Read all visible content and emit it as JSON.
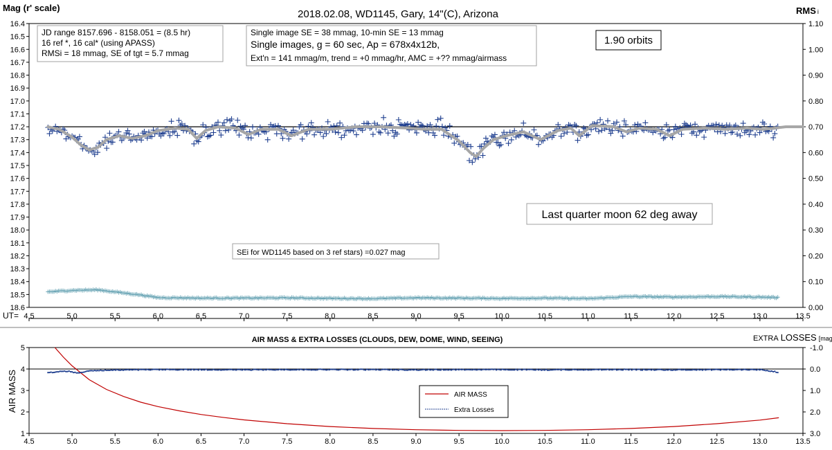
{
  "chart_data": [
    {
      "type": "scatter",
      "title": "2018.02.08,  WD1145, Gary, 14\"(C), Arizona",
      "ylabel": "Mag (r' scale)",
      "y2label": "RMS",
      "y2label_suffix": "i",
      "xlabel": "UT=",
      "xlim": [
        4.5,
        13.5
      ],
      "ylim": [
        16.4,
        18.6
      ],
      "y2lim": [
        0.0,
        1.1
      ],
      "x_ticks": [
        "4.5",
        "5.0",
        "5.5",
        "6.0",
        "6.5",
        "7.0",
        "7.5",
        "8.0",
        "8.5",
        "9.0",
        "9.5",
        "10.0",
        "10.5",
        "11.0",
        "11.5",
        "12.0",
        "12.5",
        "13.0",
        "13.5"
      ],
      "y_ticks": [
        "16.4",
        "16.5",
        "16.6",
        "16.7",
        "16.8",
        "16.9",
        "17.0",
        "17.1",
        "17.2",
        "17.3",
        "17.4",
        "17.5",
        "17.6",
        "17.7",
        "17.8",
        "17.9",
        "18.0",
        "18.1",
        "18.2",
        "18.3",
        "18.4",
        "18.5",
        "18.6"
      ],
      "y2_ticks": [
        "1.10",
        "1.00",
        "0.90",
        "0.80",
        "0.70",
        "0.60",
        "0.50",
        "0.40",
        "0.30",
        "0.20",
        "0.10",
        "0.00"
      ],
      "reference_level": 17.2,
      "x_range_data": [
        4.72,
        13.22
      ],
      "series": [
        {
          "role": "magnitude",
          "marker": "plus",
          "color": "#1f3f8f",
          "baseline": 17.22,
          "scatter": 0.04
        },
        {
          "role": "smoothed",
          "color": "#a6a6a6",
          "points": [
            [
              4.72,
              17.2
            ],
            [
              4.85,
              17.22
            ],
            [
              5.0,
              17.28
            ],
            [
              5.1,
              17.34
            ],
            [
              5.2,
              17.38
            ],
            [
              5.3,
              17.36
            ],
            [
              5.4,
              17.3
            ],
            [
              5.55,
              17.27
            ],
            [
              5.7,
              17.29
            ],
            [
              5.85,
              17.27
            ],
            [
              6.0,
              17.23
            ],
            [
              6.2,
              17.21
            ],
            [
              6.35,
              17.22
            ],
            [
              6.45,
              17.29
            ],
            [
              6.55,
              17.23
            ],
            [
              6.7,
              17.2
            ],
            [
              6.9,
              17.21
            ],
            [
              7.05,
              17.26
            ],
            [
              7.2,
              17.22
            ],
            [
              7.4,
              17.22
            ],
            [
              7.55,
              17.27
            ],
            [
              7.75,
              17.22
            ],
            [
              8.0,
              17.22
            ],
            [
              8.3,
              17.2
            ],
            [
              8.6,
              17.2
            ],
            [
              8.9,
              17.21
            ],
            [
              9.1,
              17.22
            ],
            [
              9.3,
              17.22
            ],
            [
              9.5,
              17.31
            ],
            [
              9.63,
              17.4
            ],
            [
              9.7,
              17.43
            ],
            [
              9.78,
              17.37
            ],
            [
              9.9,
              17.3
            ],
            [
              10.05,
              17.27
            ],
            [
              10.25,
              17.24
            ],
            [
              10.45,
              17.3
            ],
            [
              10.65,
              17.23
            ],
            [
              10.8,
              17.21
            ],
            [
              10.9,
              17.27
            ],
            [
              11.05,
              17.19
            ],
            [
              11.3,
              17.2
            ],
            [
              11.45,
              17.24
            ],
            [
              11.6,
              17.21
            ],
            [
              11.8,
              17.22
            ],
            [
              11.95,
              17.27
            ],
            [
              12.1,
              17.22
            ],
            [
              12.35,
              17.21
            ],
            [
              12.6,
              17.22
            ],
            [
              12.85,
              17.21
            ],
            [
              13.05,
              17.22
            ],
            [
              13.3,
              17.2
            ],
            [
              13.5,
              17.2
            ]
          ]
        },
        {
          "role": "rmsi",
          "marker": "plus",
          "color": "#6aa5b5",
          "axis": "right",
          "points": [
            [
              4.72,
              0.06
            ],
            [
              5.0,
              0.066
            ],
            [
              5.3,
              0.068
            ],
            [
              5.55,
              0.058
            ],
            [
              5.8,
              0.048
            ],
            [
              6.0,
              0.038
            ],
            [
              6.5,
              0.036
            ],
            [
              7.0,
              0.036
            ],
            [
              7.5,
              0.037
            ],
            [
              8.0,
              0.035
            ],
            [
              8.5,
              0.034
            ],
            [
              9.0,
              0.037
            ],
            [
              9.5,
              0.036
            ],
            [
              10.0,
              0.035
            ],
            [
              10.5,
              0.036
            ],
            [
              11.0,
              0.034
            ],
            [
              11.5,
              0.042
            ],
            [
              12.0,
              0.04
            ],
            [
              12.5,
              0.042
            ],
            [
              13.0,
              0.04
            ],
            [
              13.22,
              0.038
            ]
          ]
        }
      ],
      "annotations": [
        {
          "id": "jd",
          "lines": [
            "JD range  8157.696 - 8158.051  = (8.5 hr)",
            "16 ref *, 16 cal* (using APASS)",
            "RMSi = 18 mmag, SE of tgt = 5.7 mmag"
          ]
        },
        {
          "id": "se",
          "lines": [
            "Single image SE = 38 mmag, 10-min SE = 13 mmag",
            "Single images, g = 60 sec, Ap = 678x4x12b,",
            "Ext'n = 141 mmag/m, trend = +0 mmag/hr, AMC = +?? mmag/airmass"
          ]
        },
        {
          "id": "orbits",
          "lines": [
            "1.90 orbits"
          ]
        },
        {
          "id": "moon",
          "lines": [
            "Last quarter moon 62 deg away"
          ]
        },
        {
          "id": "sei",
          "lines": [
            "SEi for WD1145 based on 3 ref stars) =0.027 mag"
          ]
        }
      ]
    },
    {
      "type": "line",
      "title": "AIR MASS & EXTRA LOSSES (CLOUDS, DEW, DOME, WIND, SEEING)",
      "ylabel": "AIR MASS",
      "y2label_prefix": "EXTRA",
      "y2label": "LOSSES",
      "y2label_suffix": "[mag]",
      "xlim": [
        4.5,
        13.5
      ],
      "ylim": [
        1,
        5
      ],
      "y2lim": [
        3.0,
        -1.0
      ],
      "x_ticks": [
        "4.5",
        "5.0",
        "5.5",
        "6.0",
        "6.5",
        "7.0",
        "7.5",
        "8.0",
        "8.5",
        "9.0",
        "9.5",
        "10.0",
        "10.5",
        "11.0",
        "11.5",
        "12.0",
        "12.5",
        "13.0",
        "13.5"
      ],
      "y_ticks": [
        "5",
        "4",
        "3",
        "2",
        "1"
      ],
      "y2_ticks": [
        "-1.0",
        "0.0",
        "1.0",
        "2.0",
        "3.0"
      ],
      "legend": {
        "position": "center",
        "entries": [
          "AIR MASS",
          "Extra Losses"
        ]
      },
      "series": [
        {
          "name": "AIR MASS",
          "color": "#c00000",
          "x": [
            4.8,
            4.9,
            5.0,
            5.2,
            5.4,
            5.6,
            5.8,
            6.0,
            6.25,
            6.5,
            6.75,
            7.0,
            7.5,
            8.0,
            8.5,
            9.0,
            9.5,
            10.0,
            10.5,
            11.0,
            11.5,
            12.0,
            12.5,
            13.0,
            13.22
          ],
          "values": [
            5.0,
            4.55,
            4.15,
            3.5,
            3.05,
            2.72,
            2.45,
            2.25,
            2.05,
            1.88,
            1.75,
            1.63,
            1.45,
            1.32,
            1.23,
            1.17,
            1.14,
            1.13,
            1.14,
            1.17,
            1.23,
            1.32,
            1.45,
            1.62,
            1.73
          ]
        },
        {
          "name": "Extra Losses",
          "color": "#1f3f8f",
          "axis": "right",
          "x": [
            4.72,
            4.8,
            4.9,
            5.0,
            5.05,
            5.2,
            5.5,
            6.0,
            6.5,
            7.0,
            7.5,
            8.0,
            8.5,
            9.0,
            9.5,
            10.0,
            10.5,
            11.0,
            11.5,
            12.0,
            12.5,
            13.0,
            13.18,
            13.22
          ],
          "values": [
            0.18,
            0.15,
            0.1,
            0.12,
            0.2,
            0.08,
            0.05,
            0.03,
            0.03,
            0.04,
            0.03,
            0.03,
            0.03,
            0.04,
            0.03,
            0.03,
            0.04,
            0.03,
            0.03,
            0.04,
            0.03,
            0.03,
            0.12,
            0.2
          ]
        }
      ]
    }
  ]
}
